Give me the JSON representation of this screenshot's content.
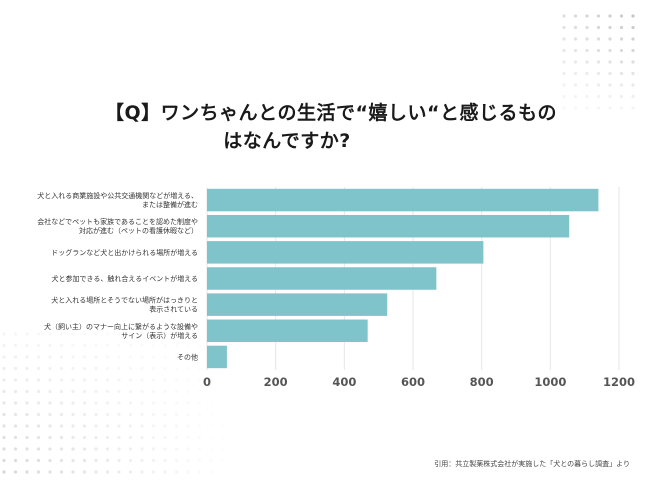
{
  "title": {
    "line1": "【Q】ワンちゃんとの生活で“嬉しい“と感じるもの",
    "line2": "はなんですか?"
  },
  "chart_data": {
    "type": "bar",
    "orientation": "horizontal",
    "categories": [
      [
        "犬と入れる商業施設や公共交通機関などが増える、",
        "または整備が進む"
      ],
      [
        "会社などでペットも家族であることを認めた制度や",
        "対応が進む（ペットの看護休暇など）"
      ],
      [
        "ドッグランなど犬と出かけられる場所が増える"
      ],
      [
        "犬と参加できる、触れ合えるイベントが増える"
      ],
      [
        "犬と入れる場所とそうでない場所がはっきりと",
        "表示されている"
      ],
      [
        "犬（飼い主）のマナー向上に繋がるような設備や",
        "サイン（表示）が増える"
      ],
      [
        "その他"
      ]
    ],
    "values": [
      1140,
      1055,
      805,
      668,
      525,
      468,
      58
    ],
    "xlim": [
      0,
      1200
    ],
    "xticks": [
      0,
      200,
      400,
      600,
      800,
      1000,
      1200
    ],
    "grid": true,
    "bar_color": "#7fc4cb",
    "grid_color": "#e6e6e6"
  },
  "source": "引用：共立製薬株式会社が実施した「犬との暮らし調査」より"
}
